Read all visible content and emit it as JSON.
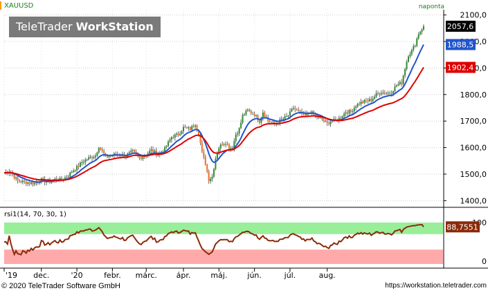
{
  "header": {
    "symbol": "XAUUSD",
    "period": "naponta",
    "brand_light": "TeleTrader",
    "brand_bold": "WorkStation"
  },
  "price_axis": {
    "ticks": [
      "2100,0",
      "2000,0",
      "1900,0",
      "1800,0",
      "1700,0",
      "1600,0",
      "1500,0",
      "1400,0"
    ],
    "badges": [
      {
        "label": "2057,6",
        "value": 2057.6,
        "color": "#000000"
      },
      {
        "label": "1988,5",
        "value": 1988.5,
        "color": "#2255cc"
      },
      {
        "label": "1902,4",
        "value": 1902.4,
        "color": "#dd0000"
      }
    ]
  },
  "rsi_panel": {
    "label": "rsi1(14, 70, 30, 1)",
    "badge": "88,7551",
    "ticks": [
      "100",
      "0"
    ]
  },
  "time_axis": [
    "'19",
    "dec.",
    "'20",
    "febr.",
    "márc.",
    "ápr.",
    "máj.",
    "jún.",
    "júl.",
    "aug."
  ],
  "footer": {
    "copyright": "© 2020 TeleTrader Software GmbH",
    "url": "https://workstation.teletrader.com"
  },
  "chart_data": {
    "type": "candlestick",
    "symbol": "XAUUSD",
    "ylim": [
      1380,
      2120
    ],
    "x_labels": [
      "'19",
      "dec.",
      "'20",
      "febr.",
      "márc.",
      "ápr.",
      "máj.",
      "jún.",
      "júl.",
      "aug."
    ],
    "price_keypoints": [
      [
        0,
        1505
      ],
      [
        3,
        1512
      ],
      [
        8,
        1475
      ],
      [
        12,
        1470
      ],
      [
        18,
        1465
      ],
      [
        22,
        1478
      ],
      [
        26,
        1470
      ],
      [
        30,
        1480
      ],
      [
        34,
        1478
      ],
      [
        38,
        1495
      ],
      [
        40,
        1510
      ],
      [
        43,
        1525
      ],
      [
        46,
        1545
      ],
      [
        50,
        1560
      ],
      [
        54,
        1570
      ],
      [
        56,
        1605
      ],
      [
        60,
        1565
      ],
      [
        66,
        1575
      ],
      [
        72,
        1570
      ],
      [
        76,
        1585
      ],
      [
        80,
        1560
      ],
      [
        84,
        1575
      ],
      [
        87,
        1590
      ],
      [
        91,
        1575
      ],
      [
        95,
        1595
      ],
      [
        99,
        1640
      ],
      [
        103,
        1650
      ],
      [
        106,
        1675
      ],
      [
        110,
        1670
      ],
      [
        113,
        1690
      ],
      [
        115,
        1655
      ],
      [
        117,
        1580
      ],
      [
        119,
        1540
      ],
      [
        121,
        1480
      ],
      [
        123,
        1490
      ],
      [
        125,
        1560
      ],
      [
        127,
        1600
      ],
      [
        129,
        1615
      ],
      [
        131,
        1620
      ],
      [
        133,
        1600
      ],
      [
        135,
        1600
      ],
      [
        137,
        1650
      ],
      [
        139,
        1670
      ],
      [
        141,
        1720
      ],
      [
        144,
        1740
      ],
      [
        148,
        1725
      ],
      [
        151,
        1700
      ],
      [
        153,
        1735
      ],
      [
        156,
        1700
      ],
      [
        160,
        1690
      ],
      [
        164,
        1705
      ],
      [
        168,
        1720
      ],
      [
        171,
        1750
      ],
      [
        174,
        1735
      ],
      [
        178,
        1720
      ],
      [
        181,
        1735
      ],
      [
        185,
        1715
      ],
      [
        188,
        1705
      ],
      [
        191,
        1690
      ],
      [
        193,
        1700
      ],
      [
        196,
        1700
      ],
      [
        199,
        1715
      ],
      [
        202,
        1735
      ],
      [
        205,
        1735
      ],
      [
        208,
        1760
      ],
      [
        211,
        1770
      ],
      [
        214,
        1775
      ],
      [
        217,
        1780
      ],
      [
        220,
        1800
      ],
      [
        223,
        1810
      ],
      [
        226,
        1805
      ],
      [
        229,
        1810
      ],
      [
        232,
        1835
      ],
      [
        235,
        1845
      ],
      [
        237,
        1900
      ],
      [
        239,
        1950
      ],
      [
        241,
        1965
      ],
      [
        243,
        1990
      ],
      [
        245,
        2030
      ],
      [
        248,
        2057.6
      ]
    ],
    "series": [
      {
        "name": "XAUUSD",
        "color": "#444444",
        "up_color": "#2e8b2e",
        "down_color": "#f07020"
      },
      {
        "color": "#2255cc",
        "last": 1988.5
      },
      {
        "color": "#dd0000",
        "last": 1902.4
      }
    ],
    "rsi": {
      "label": "rsi1(14, 70, 30, 1)",
      "ylim": [
        0,
        100
      ],
      "overbought": 70,
      "oversold": 30,
      "overbought_color": "#99ee99",
      "oversold_color": "#ffaaaa",
      "line_color": "#8b2a0a",
      "last": 88.7551
    }
  }
}
